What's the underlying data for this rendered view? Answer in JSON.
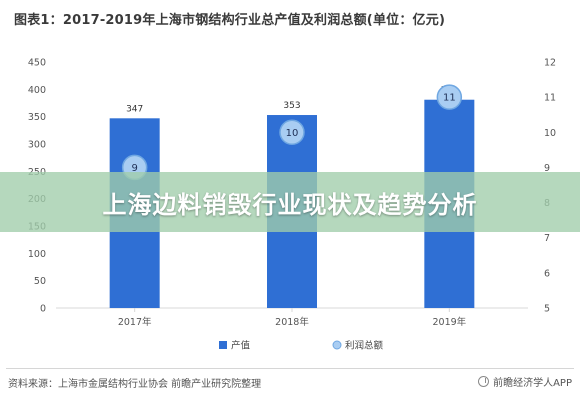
{
  "title": "图表1：2017-2019年上海市钢结构行业总产值及利润总额(单位：亿元)",
  "banner": "上海边料销毁行业现状及趋势分析",
  "footer": {
    "source": "资料来源：上海市金属结构行业协会 前瞻产业研究院整理",
    "brand": "前瞻经济学人APP"
  },
  "colors": {
    "bar": "#2f6fd4",
    "bubble_fill": "#a9cdf2",
    "bubble_stroke": "#6fa7e2",
    "axis": "#d8d8d8"
  },
  "chart_data": {
    "type": "bar",
    "title": "图表1：2017-2019年上海市钢结构行业总产值及利润总额(单位：亿元)",
    "categories": [
      "2017年",
      "2018年",
      "2019年"
    ],
    "series": [
      {
        "name": "产值",
        "type": "bar",
        "axis": "left",
        "values": [
          347,
          353,
          381
        ]
      },
      {
        "name": "利润总额",
        "type": "scatter",
        "axis": "right",
        "values": [
          9,
          10,
          11
        ]
      }
    ],
    "y_left": {
      "min": 0,
      "max": 450,
      "ticks": [
        "0",
        "50",
        "100",
        "150",
        "200",
        "250",
        "300",
        "350",
        "400",
        "450"
      ]
    },
    "y_right": {
      "min": 5,
      "max": 12,
      "ticks": [
        "5",
        "6",
        "7",
        "8",
        "9",
        "10",
        "11",
        "12"
      ]
    },
    "legend": {
      "placement": "bottom-center",
      "items": [
        "产值",
        "利润总额"
      ]
    },
    "grid": false
  }
}
